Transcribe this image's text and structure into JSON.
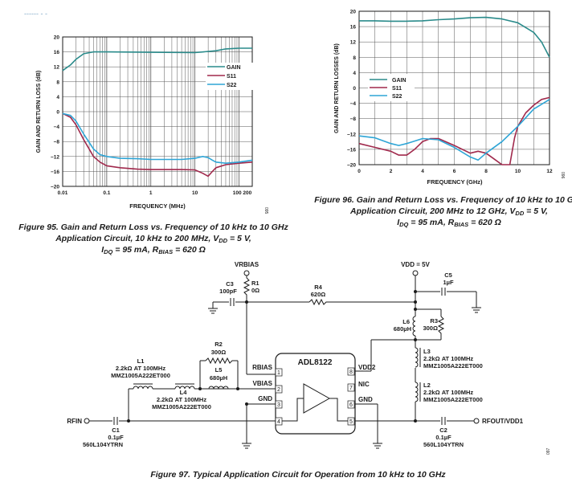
{
  "corner_fragment": "------ - -",
  "chart_data": [
    {
      "type": "line",
      "x_scale": "log",
      "xlabel": "FREQUENCY (MHz)",
      "ylabel": "GAIN AND RETURN LOSS (dB)",
      "xlim": [
        0.01,
        200
      ],
      "ylim": [
        -20,
        20
      ],
      "y_ticks": [
        "20",
        "16",
        "12",
        "8",
        "4",
        "0",
        "−4",
        "−8",
        "−12",
        "−16",
        "−20"
      ],
      "x_ticks": [
        "0.01",
        "0.1",
        "1",
        "10",
        "100 200"
      ],
      "grid": true,
      "legend_position": "right",
      "figure_id": "095",
      "series": [
        {
          "name": "GAIN",
          "color": "#2a8b8b",
          "x": [
            0.01,
            0.015,
            0.02,
            0.03,
            0.05,
            0.1,
            1,
            10,
            30,
            50,
            100,
            200
          ],
          "y": [
            11,
            12.5,
            14,
            15.5,
            16,
            16,
            15.9,
            15.8,
            16.3,
            16.8,
            17,
            17
          ]
        },
        {
          "name": "S11",
          "color": "#a0294c",
          "x": [
            0.01,
            0.015,
            0.02,
            0.03,
            0.05,
            0.07,
            0.1,
            0.2,
            0.5,
            1,
            5,
            10,
            15,
            20,
            25,
            30,
            50,
            100,
            200
          ],
          "y": [
            -0.5,
            -1.5,
            -3.5,
            -7.5,
            -12,
            -13.5,
            -14.5,
            -15,
            -15.4,
            -15.5,
            -15.5,
            -15.6,
            -16.5,
            -17.3,
            -16,
            -15,
            -14.2,
            -13.8,
            -13.5
          ]
        },
        {
          "name": "S22",
          "color": "#2ea5d6",
          "x": [
            0.01,
            0.015,
            0.02,
            0.03,
            0.05,
            0.07,
            0.1,
            0.2,
            0.5,
            1,
            5,
            10,
            15,
            20,
            25,
            30,
            50,
            100,
            200
          ],
          "y": [
            -0.5,
            -1,
            -2.5,
            -6,
            -10,
            -11.5,
            -12,
            -12.5,
            -12.6,
            -12.8,
            -12.8,
            -12.5,
            -12,
            -12.3,
            -13,
            -13.5,
            -13.8,
            -13.5,
            -13
          ]
        }
      ]
    },
    {
      "type": "line",
      "xlabel": "FREQUENCY (GHz)",
      "ylabel": "GAIN AND RETURN LOSSES (dB)",
      "xlim": [
        0,
        12
      ],
      "ylim": [
        -20,
        20
      ],
      "y_ticks": [
        "20",
        "16",
        "12",
        "8",
        "4",
        "0",
        "−4",
        "−8",
        "−12",
        "−16",
        "−20"
      ],
      "x_ticks": [
        "0",
        "2",
        "4",
        "6",
        "8",
        "10",
        "12"
      ],
      "grid": true,
      "legend_position": "left",
      "figure_id": "096",
      "series": [
        {
          "name": "GAIN",
          "color": "#2a8b8b",
          "x": [
            0,
            1,
            2,
            3,
            4,
            5,
            6,
            7,
            8,
            9,
            10,
            11,
            11.5,
            12
          ],
          "y": [
            17.5,
            17.5,
            17.4,
            17.4,
            17.5,
            17.8,
            18,
            18.3,
            18.4,
            18,
            17,
            14.5,
            12,
            8
          ]
        },
        {
          "name": "S11",
          "color": "#a0294c",
          "x": [
            0,
            1,
            2,
            2.5,
            3,
            3.5,
            4,
            4.5,
            5,
            6,
            7,
            7.5,
            8,
            8.5,
            9,
            9.5,
            9.8,
            10,
            10.5,
            11,
            11.5,
            12
          ],
          "y": [
            -14.5,
            -15.5,
            -16.5,
            -17.5,
            -17.5,
            -16,
            -14,
            -13.2,
            -13.2,
            -15,
            -17,
            -16.5,
            -17,
            -18.5,
            -20,
            -20,
            -13,
            -10,
            -6.5,
            -4.5,
            -3,
            -2.5
          ]
        },
        {
          "name": "S22",
          "color": "#2ea5d6",
          "x": [
            0,
            1,
            2,
            2.5,
            3,
            4,
            5,
            6,
            7,
            7.5,
            8,
            9,
            10,
            11,
            12
          ],
          "y": [
            -12.5,
            -13,
            -14.5,
            -15,
            -14.5,
            -13.2,
            -13.5,
            -15.5,
            -18,
            -18.8,
            -17,
            -14,
            -10,
            -5.5,
            -3
          ]
        }
      ]
    }
  ],
  "captions": {
    "fig95_l1": "Figure 95. Gain and Return Loss vs. Frequency of 10 kHz to 10 GHz",
    "fig95_l2": "Application Circuit, 10 kHz to 200 MHz, V",
    "fig95_l2_sub": "DD",
    "fig95_l2_tail": " = 5 V,",
    "fig95_l3a": "I",
    "fig95_l3a_sub": "DQ",
    "fig95_l3b": " = 95 mA, R",
    "fig95_l3b_sub": "BIAS",
    "fig95_l3c": " = 620 Ω",
    "fig96_l1": "Figure 96. Gain and Return Loss vs. Frequency of 10 kHz to 10 GHz",
    "fig96_l2": "Application Circuit, 200 MHz to 12 GHz, V",
    "fig96_l2_sub": "DD",
    "fig96_l2_tail": " = 5 V,",
    "fig96_l3a": "I",
    "fig96_l3a_sub": "DQ",
    "fig96_l3b": " = 95 mA, R",
    "fig96_l3b_sub": "BIAS",
    "fig96_l3c": " = 620 Ω",
    "fig97": "Figure 97. Typical Application Circuit for Operation from 10 kHz to 10 GHz"
  },
  "schematic": {
    "chip": "ADL8122",
    "vrbias": "VRBIAS",
    "vdd": "VDD = 5V",
    "c3_name": "C3",
    "c3_val": "100pF",
    "r1_name": "R1",
    "r1_val": "0Ω",
    "r4_name": "R4",
    "r4_val": "620Ω",
    "c5_name": "C5",
    "c5_val": "1µF",
    "l6_name": "L6",
    "l6_val": "680µH",
    "r3_name": "R3",
    "r3_val": "300Ω",
    "r2_name": "R2",
    "r2_val": "300Ω",
    "l5_name": "L5",
    "l5_val": "680µH",
    "l1_name": "L1",
    "l1_val": "2.2kΩ AT 100MHz",
    "l1_part": "MMZ1005A222ET000",
    "l4_name": "L4",
    "l4_val": "2.2kΩ AT 100MHz",
    "l4_part": "MMZ1005A222ET000",
    "l3_name": "L3",
    "l3_val": "2.2kΩ AT 100MHz",
    "l3_part": "MMZ1005A222ET000",
    "l2_name": "L2",
    "l2_val": "2.2kΩ AT 100MHz",
    "l2_part": "MMZ1005A222ET000",
    "c1_name": "C1",
    "c1_val": "0.1µF",
    "c1_part": "560L104YTRN",
    "c2_name": "C2",
    "c2_val": "0.1µF",
    "c2_part": "560L104YTRN",
    "rfin": "RFIN",
    "rfout": "RFOUT/VDD1",
    "pin_rbias": "RBIAS",
    "pin_vbias": "VBIAS",
    "pin_gnd_l": "GND",
    "pin_vdd2": "VDD2",
    "pin_nic": "NIC",
    "pin_gnd_r": "GND",
    "pin1": "1",
    "pin2": "2",
    "pin3": "3",
    "pin4": "4",
    "pin5": "5",
    "pin6": "6",
    "pin7": "7",
    "pin8": "8",
    "fig_id": "097"
  }
}
